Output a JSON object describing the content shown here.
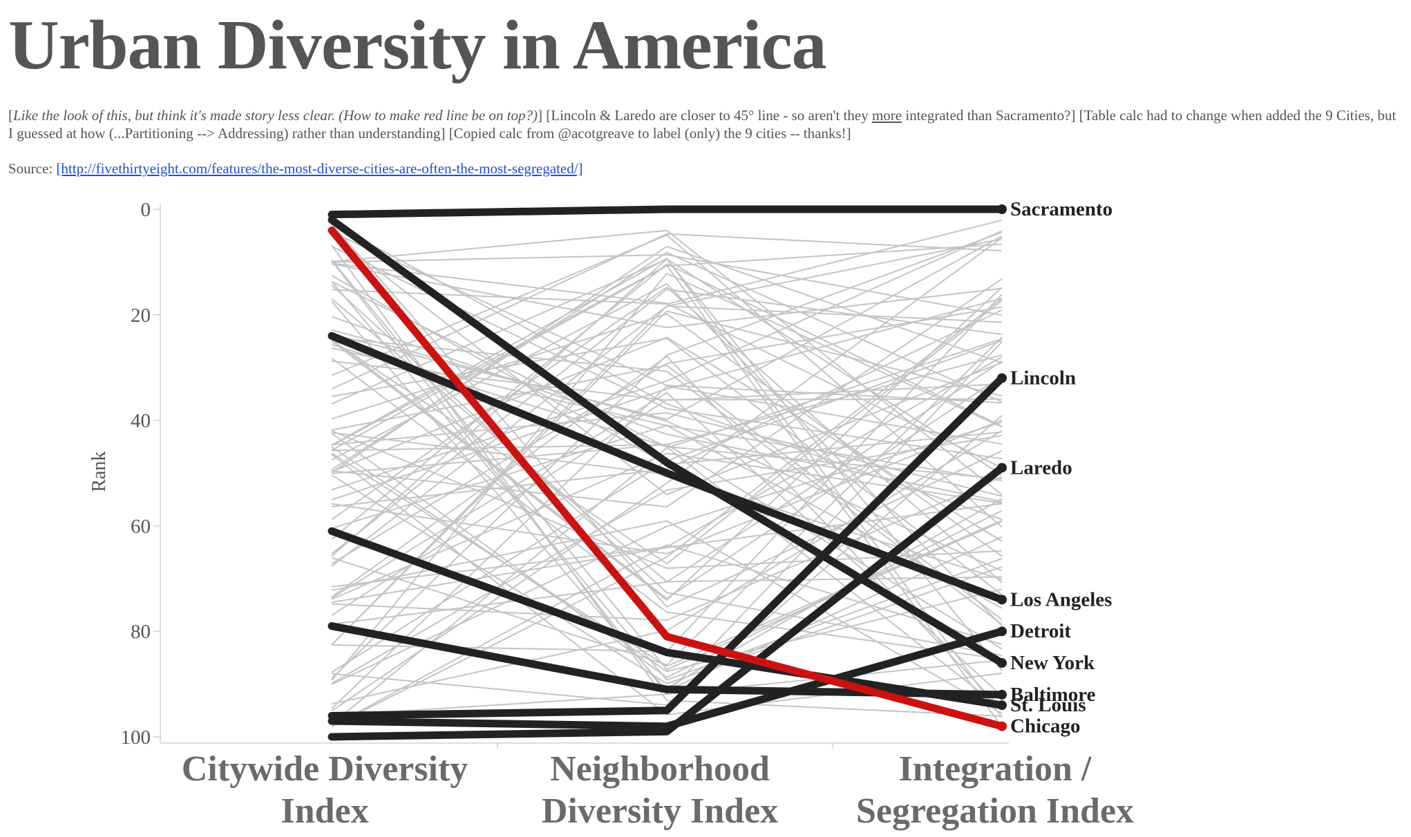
{
  "header": {
    "title": "Urban Diversity in America",
    "note_italic": "Like the look of this, but think it's made story less clear. (How to make red line be on top?)",
    "note_part1": "] [Lincoln & Laredo are closer to 45° line - so aren't they ",
    "note_underlined": "more",
    "note_part2": " integrated than Sacramento?] [Table calc had to change when added the 9 Cities, but I guessed at how (...Partitioning --> Addressing) rather than understanding] [Copied calc from @acotgreave to label (only) the 9 cities -- thanks!]",
    "source_label": "Source: ",
    "source_link": "[http://fivethirtyeight.com/features/the-most-diverse-cities-are-often-the-most-segregated/]"
  },
  "colors": {
    "highlight": "#222222",
    "chicago": "#cc1111",
    "background_lines": "#c4c4c4",
    "axis": "#bbbbbb"
  },
  "chart_data": {
    "type": "line",
    "xlabel": "",
    "ylabel": "Rank",
    "categories": [
      "Citywide Diversity Index",
      "Neighborhood Diversity Index",
      "Integration / Segregation Index"
    ],
    "category_lines": [
      [
        "Citywide Diversity",
        "Index"
      ],
      [
        "Neighborhood",
        "Diversity Index"
      ],
      [
        "Integration /",
        "Segregation Index"
      ]
    ],
    "y_ticks": [
      0,
      20,
      40,
      60,
      80,
      100
    ],
    "ylim": [
      0,
      100
    ],
    "y_reversed": true,
    "grid": false,
    "series": [
      {
        "name": "Sacramento",
        "values": [
          1,
          0,
          0
        ],
        "color": "#222222",
        "emphasis": true
      },
      {
        "name": "Lincoln",
        "values": [
          96,
          95,
          32
        ],
        "color": "#222222",
        "emphasis": true
      },
      {
        "name": "Laredo",
        "values": [
          100,
          99,
          49
        ],
        "color": "#222222",
        "emphasis": true
      },
      {
        "name": "Los Angeles",
        "values": [
          24,
          50,
          74
        ],
        "color": "#222222",
        "emphasis": true
      },
      {
        "name": "Detroit",
        "values": [
          97,
          98,
          80
        ],
        "color": "#222222",
        "emphasis": true
      },
      {
        "name": "New York",
        "values": [
          2,
          48,
          86
        ],
        "color": "#222222",
        "emphasis": true
      },
      {
        "name": "Baltimore",
        "values": [
          79,
          91,
          92
        ],
        "color": "#222222",
        "emphasis": true
      },
      {
        "name": "St. Louis",
        "values": [
          61,
          84,
          94
        ],
        "color": "#222222",
        "emphasis": true
      },
      {
        "name": "Chicago",
        "values": [
          4,
          81,
          98
        ],
        "color": "#cc1111",
        "emphasis": true
      }
    ]
  }
}
